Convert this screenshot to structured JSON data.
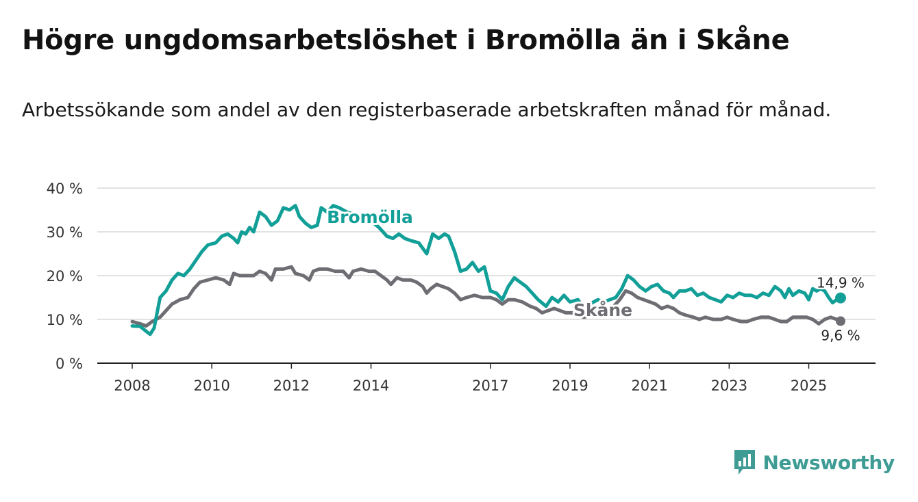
{
  "header": {
    "title": "Högre ungdomsarbetslöshet i Bromölla än i Skåne",
    "subtitle": "Arbetssökande som andel av den registerbaserade arbetskraften månad för månad."
  },
  "brand": {
    "name": "Newsworthy",
    "color": "#3e9c95"
  },
  "chart_data": {
    "type": "line",
    "title": "Högre ungdomsarbetslöshet i Bromölla än i Skåne",
    "xlabel": "",
    "ylabel": "",
    "xlim": [
      2008.0,
      2025.8
    ],
    "ylim": [
      0,
      40
    ],
    "y_ticks": [
      0,
      10,
      20,
      30,
      40
    ],
    "y_tick_labels": [
      "0 %",
      "10 %",
      "20 %",
      "30 %",
      "40 %"
    ],
    "x_ticks": [
      2008,
      2010,
      2012,
      2014,
      2017,
      2019,
      2021,
      2023,
      2025
    ],
    "x_tick_labels": [
      "2008",
      "2010",
      "2012",
      "2014",
      "2017",
      "2019",
      "2021",
      "2023",
      "2025"
    ],
    "grid": true,
    "series": [
      {
        "name": "Bromölla",
        "color": "#129f98",
        "end_label": "14,9 %",
        "points": [
          [
            2008.0,
            8.5
          ],
          [
            2008.2,
            8.4
          ],
          [
            2008.35,
            7.3
          ],
          [
            2008.45,
            6.6
          ],
          [
            2008.55,
            8.0
          ],
          [
            2008.7,
            15.0
          ],
          [
            2008.85,
            16.5
          ],
          [
            2009.0,
            19.0
          ],
          [
            2009.15,
            20.5
          ],
          [
            2009.3,
            20.0
          ],
          [
            2009.45,
            21.5
          ],
          [
            2009.6,
            23.5
          ],
          [
            2009.75,
            25.5
          ],
          [
            2009.9,
            27.0
          ],
          [
            2010.1,
            27.5
          ],
          [
            2010.25,
            29.0
          ],
          [
            2010.4,
            29.5
          ],
          [
            2010.55,
            28.5
          ],
          [
            2010.65,
            27.5
          ],
          [
            2010.75,
            30.0
          ],
          [
            2010.85,
            29.5
          ],
          [
            2010.95,
            31.0
          ],
          [
            2011.05,
            30.0
          ],
          [
            2011.2,
            34.5
          ],
          [
            2011.35,
            33.5
          ],
          [
            2011.5,
            31.5
          ],
          [
            2011.65,
            32.5
          ],
          [
            2011.8,
            35.5
          ],
          [
            2011.95,
            35.0
          ],
          [
            2012.1,
            36.0
          ],
          [
            2012.2,
            33.5
          ],
          [
            2012.35,
            32.0
          ],
          [
            2012.5,
            31.0
          ],
          [
            2012.65,
            31.5
          ],
          [
            2012.75,
            35.5
          ],
          [
            2012.9,
            34.5
          ],
          [
            2013.05,
            36.0
          ],
          [
            2013.2,
            35.5
          ],
          [
            2013.4,
            34.5
          ],
          [
            2013.6,
            34.0
          ],
          [
            2013.8,
            33.5
          ],
          [
            2014.0,
            32.5
          ],
          [
            2014.2,
            31.0
          ],
          [
            2014.4,
            29.0
          ],
          [
            2014.55,
            28.5
          ],
          [
            2014.7,
            29.5
          ],
          [
            2014.85,
            28.5
          ],
          [
            2015.0,
            28.0
          ],
          [
            2015.2,
            27.5
          ],
          [
            2015.4,
            25.0
          ],
          [
            2015.55,
            29.5
          ],
          [
            2015.7,
            28.5
          ],
          [
            2015.85,
            29.5
          ],
          [
            2015.95,
            29.0
          ],
          [
            2016.1,
            25.5
          ],
          [
            2016.25,
            21.0
          ],
          [
            2016.4,
            21.5
          ],
          [
            2016.55,
            23.0
          ],
          [
            2016.7,
            21.0
          ],
          [
            2016.85,
            22.0
          ],
          [
            2017.0,
            16.5
          ],
          [
            2017.15,
            16.0
          ],
          [
            2017.3,
            14.5
          ],
          [
            2017.45,
            17.5
          ],
          [
            2017.6,
            19.5
          ],
          [
            2017.75,
            18.5
          ],
          [
            2017.9,
            17.5
          ],
          [
            2018.05,
            16.0
          ],
          [
            2018.2,
            14.5
          ],
          [
            2018.4,
            13.0
          ],
          [
            2018.55,
            15.0
          ],
          [
            2018.7,
            14.0
          ],
          [
            2018.85,
            15.5
          ],
          [
            2019.0,
            14.0
          ],
          [
            2019.2,
            14.5
          ],
          [
            2019.35,
            12.5
          ],
          [
            2019.5,
            13.5
          ],
          [
            2019.7,
            14.5
          ],
          [
            2019.85,
            14.0
          ],
          [
            2020.0,
            14.5
          ],
          [
            2020.15,
            15.0
          ],
          [
            2020.3,
            17.0
          ],
          [
            2020.45,
            20.0
          ],
          [
            2020.6,
            19.0
          ],
          [
            2020.75,
            17.5
          ],
          [
            2020.9,
            16.5
          ],
          [
            2021.05,
            17.5
          ],
          [
            2021.2,
            18.0
          ],
          [
            2021.35,
            16.5
          ],
          [
            2021.5,
            16.0
          ],
          [
            2021.6,
            15.0
          ],
          [
            2021.75,
            16.5
          ],
          [
            2021.9,
            16.5
          ],
          [
            2022.05,
            17.0
          ],
          [
            2022.2,
            15.5
          ],
          [
            2022.35,
            16.0
          ],
          [
            2022.5,
            15.0
          ],
          [
            2022.65,
            14.5
          ],
          [
            2022.8,
            14.0
          ],
          [
            2022.95,
            15.5
          ],
          [
            2023.1,
            15.0
          ],
          [
            2023.25,
            16.0
          ],
          [
            2023.4,
            15.5
          ],
          [
            2023.55,
            15.5
          ],
          [
            2023.7,
            15.0
          ],
          [
            2023.85,
            16.0
          ],
          [
            2024.0,
            15.5
          ],
          [
            2024.15,
            17.5
          ],
          [
            2024.3,
            16.5
          ],
          [
            2024.4,
            15.0
          ],
          [
            2024.5,
            17.0
          ],
          [
            2024.6,
            15.5
          ],
          [
            2024.75,
            16.5
          ],
          [
            2024.9,
            16.0
          ],
          [
            2025.0,
            14.5
          ],
          [
            2025.1,
            17.0
          ],
          [
            2025.2,
            16.5
          ],
          [
            2025.3,
            17.0
          ],
          [
            2025.4,
            16.5
          ],
          [
            2025.5,
            15.0
          ],
          [
            2025.6,
            13.8
          ],
          [
            2025.7,
            14.5
          ],
          [
            2025.8,
            14.9
          ]
        ]
      },
      {
        "name": "Skåne",
        "color": "#6e6d73",
        "end_label": "9,6 %",
        "points": [
          [
            2008.0,
            9.5
          ],
          [
            2008.2,
            9.0
          ],
          [
            2008.35,
            8.5
          ],
          [
            2008.5,
            9.5
          ],
          [
            2008.7,
            10.5
          ],
          [
            2008.85,
            12.0
          ],
          [
            2009.0,
            13.5
          ],
          [
            2009.2,
            14.5
          ],
          [
            2009.4,
            15.0
          ],
          [
            2009.55,
            17.0
          ],
          [
            2009.7,
            18.5
          ],
          [
            2009.9,
            19.0
          ],
          [
            2010.1,
            19.5
          ],
          [
            2010.3,
            19.0
          ],
          [
            2010.45,
            18.0
          ],
          [
            2010.55,
            20.5
          ],
          [
            2010.7,
            20.0
          ],
          [
            2010.9,
            20.0
          ],
          [
            2011.05,
            20.0
          ],
          [
            2011.2,
            21.0
          ],
          [
            2011.35,
            20.5
          ],
          [
            2011.5,
            19.0
          ],
          [
            2011.6,
            21.5
          ],
          [
            2011.8,
            21.5
          ],
          [
            2012.0,
            22.0
          ],
          [
            2012.1,
            20.5
          ],
          [
            2012.3,
            20.0
          ],
          [
            2012.45,
            19.0
          ],
          [
            2012.55,
            21.0
          ],
          [
            2012.7,
            21.5
          ],
          [
            2012.9,
            21.5
          ],
          [
            2013.1,
            21.0
          ],
          [
            2013.3,
            21.0
          ],
          [
            2013.45,
            19.5
          ],
          [
            2013.55,
            21.0
          ],
          [
            2013.75,
            21.5
          ],
          [
            2013.95,
            21.0
          ],
          [
            2014.1,
            21.0
          ],
          [
            2014.25,
            20.0
          ],
          [
            2014.4,
            19.0
          ],
          [
            2014.5,
            18.0
          ],
          [
            2014.65,
            19.5
          ],
          [
            2014.8,
            19.0
          ],
          [
            2015.0,
            19.0
          ],
          [
            2015.15,
            18.5
          ],
          [
            2015.3,
            17.5
          ],
          [
            2015.4,
            16.0
          ],
          [
            2015.5,
            17.0
          ],
          [
            2015.65,
            18.0
          ],
          [
            2015.8,
            17.5
          ],
          [
            2015.95,
            17.0
          ],
          [
            2016.1,
            16.0
          ],
          [
            2016.25,
            14.5
          ],
          [
            2016.4,
            15.0
          ],
          [
            2016.6,
            15.5
          ],
          [
            2016.8,
            15.0
          ],
          [
            2017.0,
            15.0
          ],
          [
            2017.15,
            14.5
          ],
          [
            2017.3,
            13.5
          ],
          [
            2017.45,
            14.5
          ],
          [
            2017.6,
            14.5
          ],
          [
            2017.8,
            14.0
          ],
          [
            2018.0,
            13.0
          ],
          [
            2018.15,
            12.5
          ],
          [
            2018.3,
            11.5
          ],
          [
            2018.45,
            12.0
          ],
          [
            2018.6,
            12.5
          ],
          [
            2018.75,
            12.0
          ],
          [
            2018.9,
            11.5
          ],
          [
            2019.05,
            11.5
          ],
          [
            2019.2,
            11.0
          ],
          [
            2019.35,
            10.5
          ],
          [
            2019.55,
            11.0
          ],
          [
            2019.75,
            12.0
          ],
          [
            2019.95,
            12.5
          ],
          [
            2020.1,
            13.0
          ],
          [
            2020.25,
            14.5
          ],
          [
            2020.4,
            16.5
          ],
          [
            2020.55,
            16.0
          ],
          [
            2020.7,
            15.0
          ],
          [
            2020.85,
            14.5
          ],
          [
            2021.0,
            14.0
          ],
          [
            2021.15,
            13.5
          ],
          [
            2021.3,
            12.5
          ],
          [
            2021.45,
            13.0
          ],
          [
            2021.6,
            12.5
          ],
          [
            2021.75,
            11.5
          ],
          [
            2021.9,
            11.0
          ],
          [
            2022.1,
            10.5
          ],
          [
            2022.25,
            10.0
          ],
          [
            2022.4,
            10.5
          ],
          [
            2022.6,
            10.0
          ],
          [
            2022.8,
            10.0
          ],
          [
            2022.95,
            10.5
          ],
          [
            2023.1,
            10.0
          ],
          [
            2023.3,
            9.5
          ],
          [
            2023.45,
            9.5
          ],
          [
            2023.6,
            10.0
          ],
          [
            2023.8,
            10.5
          ],
          [
            2024.0,
            10.5
          ],
          [
            2024.15,
            10.0
          ],
          [
            2024.3,
            9.5
          ],
          [
            2024.45,
            9.5
          ],
          [
            2024.6,
            10.5
          ],
          [
            2024.75,
            10.5
          ],
          [
            2024.95,
            10.5
          ],
          [
            2025.1,
            10.0
          ],
          [
            2025.25,
            9.0
          ],
          [
            2025.4,
            10.0
          ],
          [
            2025.55,
            10.5
          ],
          [
            2025.7,
            10.0
          ],
          [
            2025.8,
            9.6
          ]
        ]
      }
    ]
  }
}
